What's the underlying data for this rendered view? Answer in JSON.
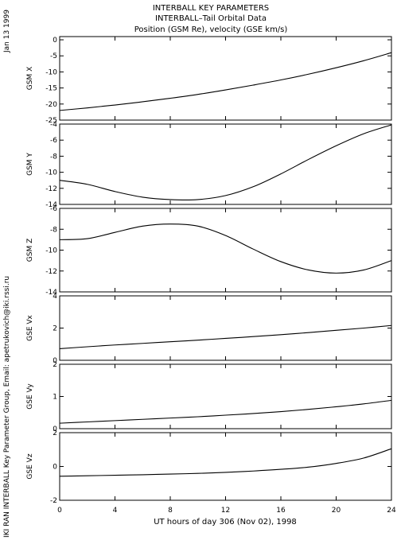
{
  "header": {
    "title_line1": "INTERBALL KEY PARAMETERS",
    "title_line2": "INTERBALL–Tail Orbital Data",
    "title_line3": "Position (GSM Re), velocity (GSE km/s)"
  },
  "side_text": {
    "date": "Jan 13 1999",
    "credit": "IKI RAN INTERBALL Key Parameter Group, Email: apetrukovich@iki.rssi.ru"
  },
  "chart_data": [
    {
      "type": "line",
      "ylabel": "GSM X",
      "ylim": [
        -25,
        1
      ],
      "yticks": [
        0,
        -5,
        -10,
        -15,
        -20,
        -25
      ],
      "xlim": [
        0,
        24
      ],
      "x": [
        0,
        2,
        4,
        6,
        8,
        10,
        12,
        14,
        16,
        18,
        20,
        22,
        24
      ],
      "values": [
        -22.0,
        -21.2,
        -20.3,
        -19.3,
        -18.2,
        -17.0,
        -15.6,
        -14.1,
        -12.5,
        -10.7,
        -8.7,
        -6.5,
        -4.0
      ]
    },
    {
      "type": "line",
      "ylabel": "GSM Y",
      "ylim": [
        -14,
        -4
      ],
      "yticks": [
        -4,
        -6,
        -8,
        -10,
        -12,
        -14
      ],
      "xlim": [
        0,
        24
      ],
      "x": [
        0,
        2,
        4,
        6,
        8,
        10,
        12,
        14,
        16,
        18,
        20,
        22,
        24
      ],
      "values": [
        -11.0,
        -11.5,
        -12.4,
        -13.1,
        -13.4,
        -13.4,
        -12.9,
        -11.8,
        -10.2,
        -8.4,
        -6.7,
        -5.2,
        -4.1
      ]
    },
    {
      "type": "line",
      "ylabel": "GSM Z",
      "ylim": [
        -14,
        -6
      ],
      "yticks": [
        -6,
        -8,
        -10,
        -12,
        -14
      ],
      "xlim": [
        0,
        24
      ],
      "x": [
        0,
        2,
        4,
        6,
        8,
        10,
        12,
        14,
        16,
        18,
        20,
        22,
        24
      ],
      "values": [
        -9.0,
        -8.9,
        -8.3,
        -7.7,
        -7.5,
        -7.7,
        -8.6,
        -9.9,
        -11.1,
        -11.9,
        -12.2,
        -11.9,
        -11.0
      ]
    },
    {
      "type": "line",
      "ylabel": "GSE Vx",
      "ylim": [
        0,
        4
      ],
      "yticks": [
        0,
        2,
        4
      ],
      "xlim": [
        0,
        24
      ],
      "x": [
        0,
        2,
        4,
        6,
        8,
        10,
        12,
        14,
        16,
        18,
        20,
        22,
        24
      ],
      "values": [
        0.72,
        0.84,
        0.95,
        1.05,
        1.15,
        1.25,
        1.36,
        1.47,
        1.59,
        1.72,
        1.86,
        2.0,
        2.16
      ]
    },
    {
      "type": "line",
      "ylabel": "GSE Vy",
      "ylim": [
        0,
        2
      ],
      "yticks": [
        0,
        1,
        2
      ],
      "xlim": [
        0,
        24
      ],
      "x": [
        0,
        2,
        4,
        6,
        8,
        10,
        12,
        14,
        16,
        18,
        20,
        22,
        24
      ],
      "values": [
        0.17,
        0.21,
        0.25,
        0.29,
        0.33,
        0.37,
        0.42,
        0.47,
        0.53,
        0.6,
        0.68,
        0.77,
        0.88
      ]
    },
    {
      "type": "line",
      "ylabel": "GSE Vz",
      "ylim": [
        -2,
        2
      ],
      "yticks": [
        -2,
        0,
        2
      ],
      "xlim": [
        0,
        24
      ],
      "x": [
        0,
        2,
        4,
        6,
        8,
        10,
        12,
        14,
        16,
        18,
        20,
        22,
        24
      ],
      "values": [
        -0.58,
        -0.55,
        -0.52,
        -0.49,
        -0.45,
        -0.41,
        -0.35,
        -0.27,
        -0.17,
        -0.04,
        0.18,
        0.5,
        1.05
      ]
    }
  ],
  "x_axis": {
    "ticks": [
      0,
      4,
      8,
      12,
      16,
      20,
      24
    ],
    "label": "UT hours of day 306 (Nov 02), 1998"
  }
}
